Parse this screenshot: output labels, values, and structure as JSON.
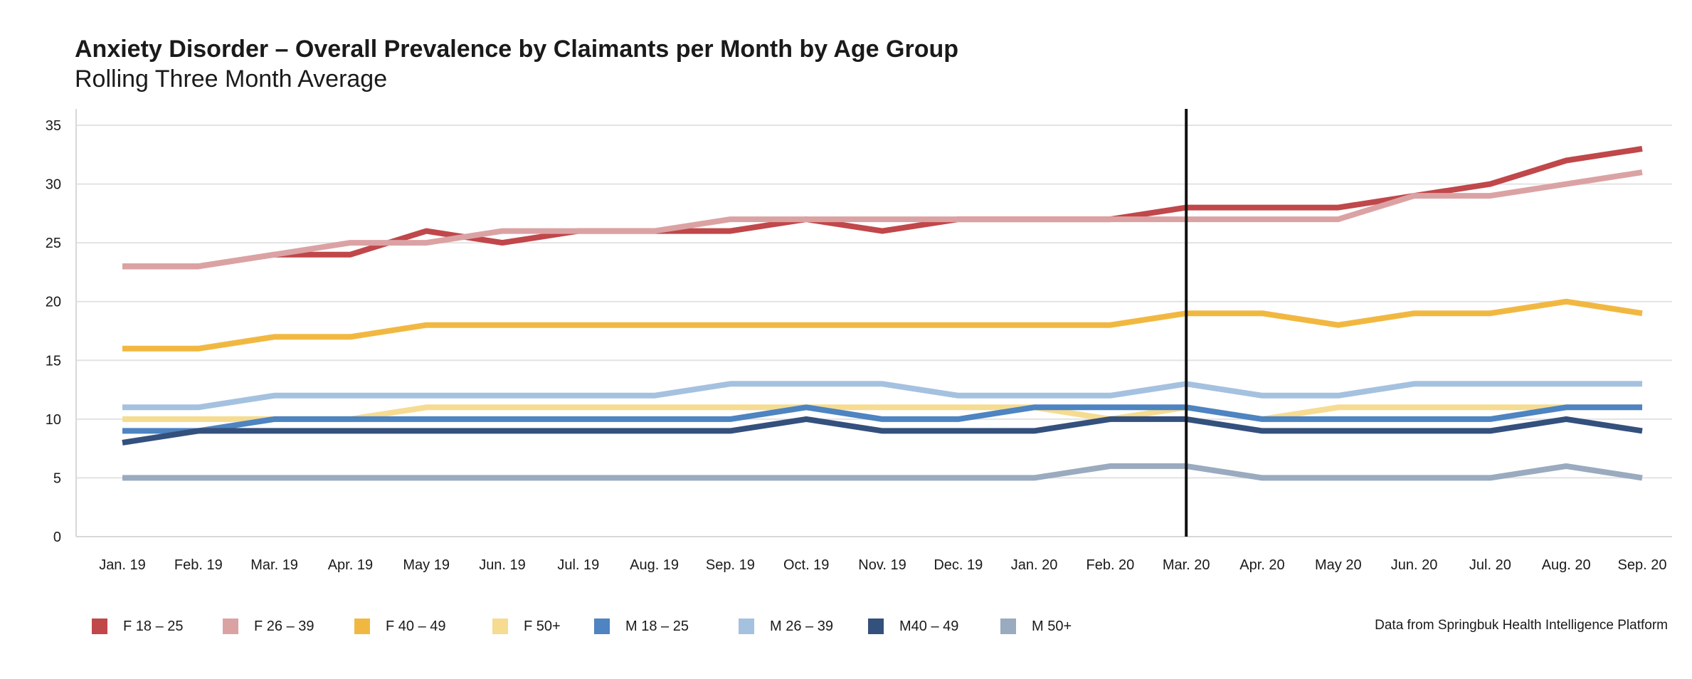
{
  "chart_data": {
    "type": "line",
    "title": "Anxiety Disorder – Overall Prevalence by Claimants per Month by Age Group",
    "subtitle": "Rolling Three Month Average",
    "xlabel": "",
    "ylabel": "",
    "categories": [
      "Jan. 19",
      "Feb. 19",
      "Mar. 19",
      "Apr. 19",
      "May 19",
      "Jun. 19",
      "Jul. 19",
      "Aug. 19",
      "Sep. 19",
      "Oct. 19",
      "Nov. 19",
      "Dec. 19",
      "Jan. 20",
      "Feb. 20",
      "Mar. 20",
      "Apr. 20",
      "May 20",
      "Jun. 20",
      "Jul. 20",
      "Aug. 20",
      "Sep. 20"
    ],
    "ylim": [
      0,
      35
    ],
    "yticks": [
      0,
      5,
      10,
      15,
      20,
      25,
      30,
      35
    ],
    "grid": "horizontal",
    "vertical_marker_category": "Mar. 20",
    "legend_position": "bottom",
    "series": [
      {
        "name": "F 18 – 25",
        "color": "#c0474a",
        "values": [
          23,
          23,
          24,
          24,
          26,
          25,
          26,
          26,
          26,
          27,
          26,
          27,
          27,
          27,
          28,
          28,
          28,
          29,
          30,
          32,
          33
        ]
      },
      {
        "name": "F 26 – 39",
        "color": "#dba2a4",
        "values": [
          23,
          23,
          24,
          25,
          25,
          26,
          26,
          26,
          27,
          27,
          27,
          27,
          27,
          27,
          27,
          27,
          27,
          29,
          29,
          30,
          31
        ]
      },
      {
        "name": "F 40 – 49",
        "color": "#f1b841",
        "values": [
          16,
          16,
          17,
          17,
          18,
          18,
          18,
          18,
          18,
          18,
          18,
          18,
          18,
          18,
          19,
          19,
          18,
          19,
          19,
          20,
          19
        ]
      },
      {
        "name": "F 50+",
        "color": "#f6dc91",
        "values": [
          10,
          10,
          10,
          10,
          11,
          11,
          11,
          11,
          11,
          11,
          11,
          11,
          11,
          10,
          11,
          10,
          11,
          11,
          11,
          11,
          11
        ]
      },
      {
        "name": "M 18 – 25",
        "color": "#4d84c1",
        "values": [
          9,
          9,
          10,
          10,
          10,
          10,
          10,
          10,
          10,
          11,
          10,
          10,
          11,
          11,
          11,
          10,
          10,
          10,
          10,
          11,
          11
        ]
      },
      {
        "name": "M 26 – 39",
        "color": "#a5c1e0",
        "values": [
          11,
          11,
          12,
          12,
          12,
          12,
          12,
          12,
          13,
          13,
          13,
          12,
          12,
          12,
          13,
          12,
          12,
          13,
          13,
          13,
          13
        ]
      },
      {
        "name": "M40 – 49",
        "color": "#34507d",
        "values": [
          8,
          9,
          9,
          9,
          9,
          9,
          9,
          9,
          9,
          10,
          9,
          9,
          9,
          10,
          10,
          9,
          9,
          9,
          9,
          10,
          9
        ]
      },
      {
        "name": "M 50+",
        "color": "#9aaabf",
        "values": [
          5,
          5,
          5,
          5,
          5,
          5,
          5,
          5,
          5,
          5,
          5,
          5,
          5,
          6,
          6,
          5,
          5,
          5,
          5,
          6,
          5
        ]
      }
    ],
    "source": "Data from Springbuk Health Intelligence Platform"
  }
}
